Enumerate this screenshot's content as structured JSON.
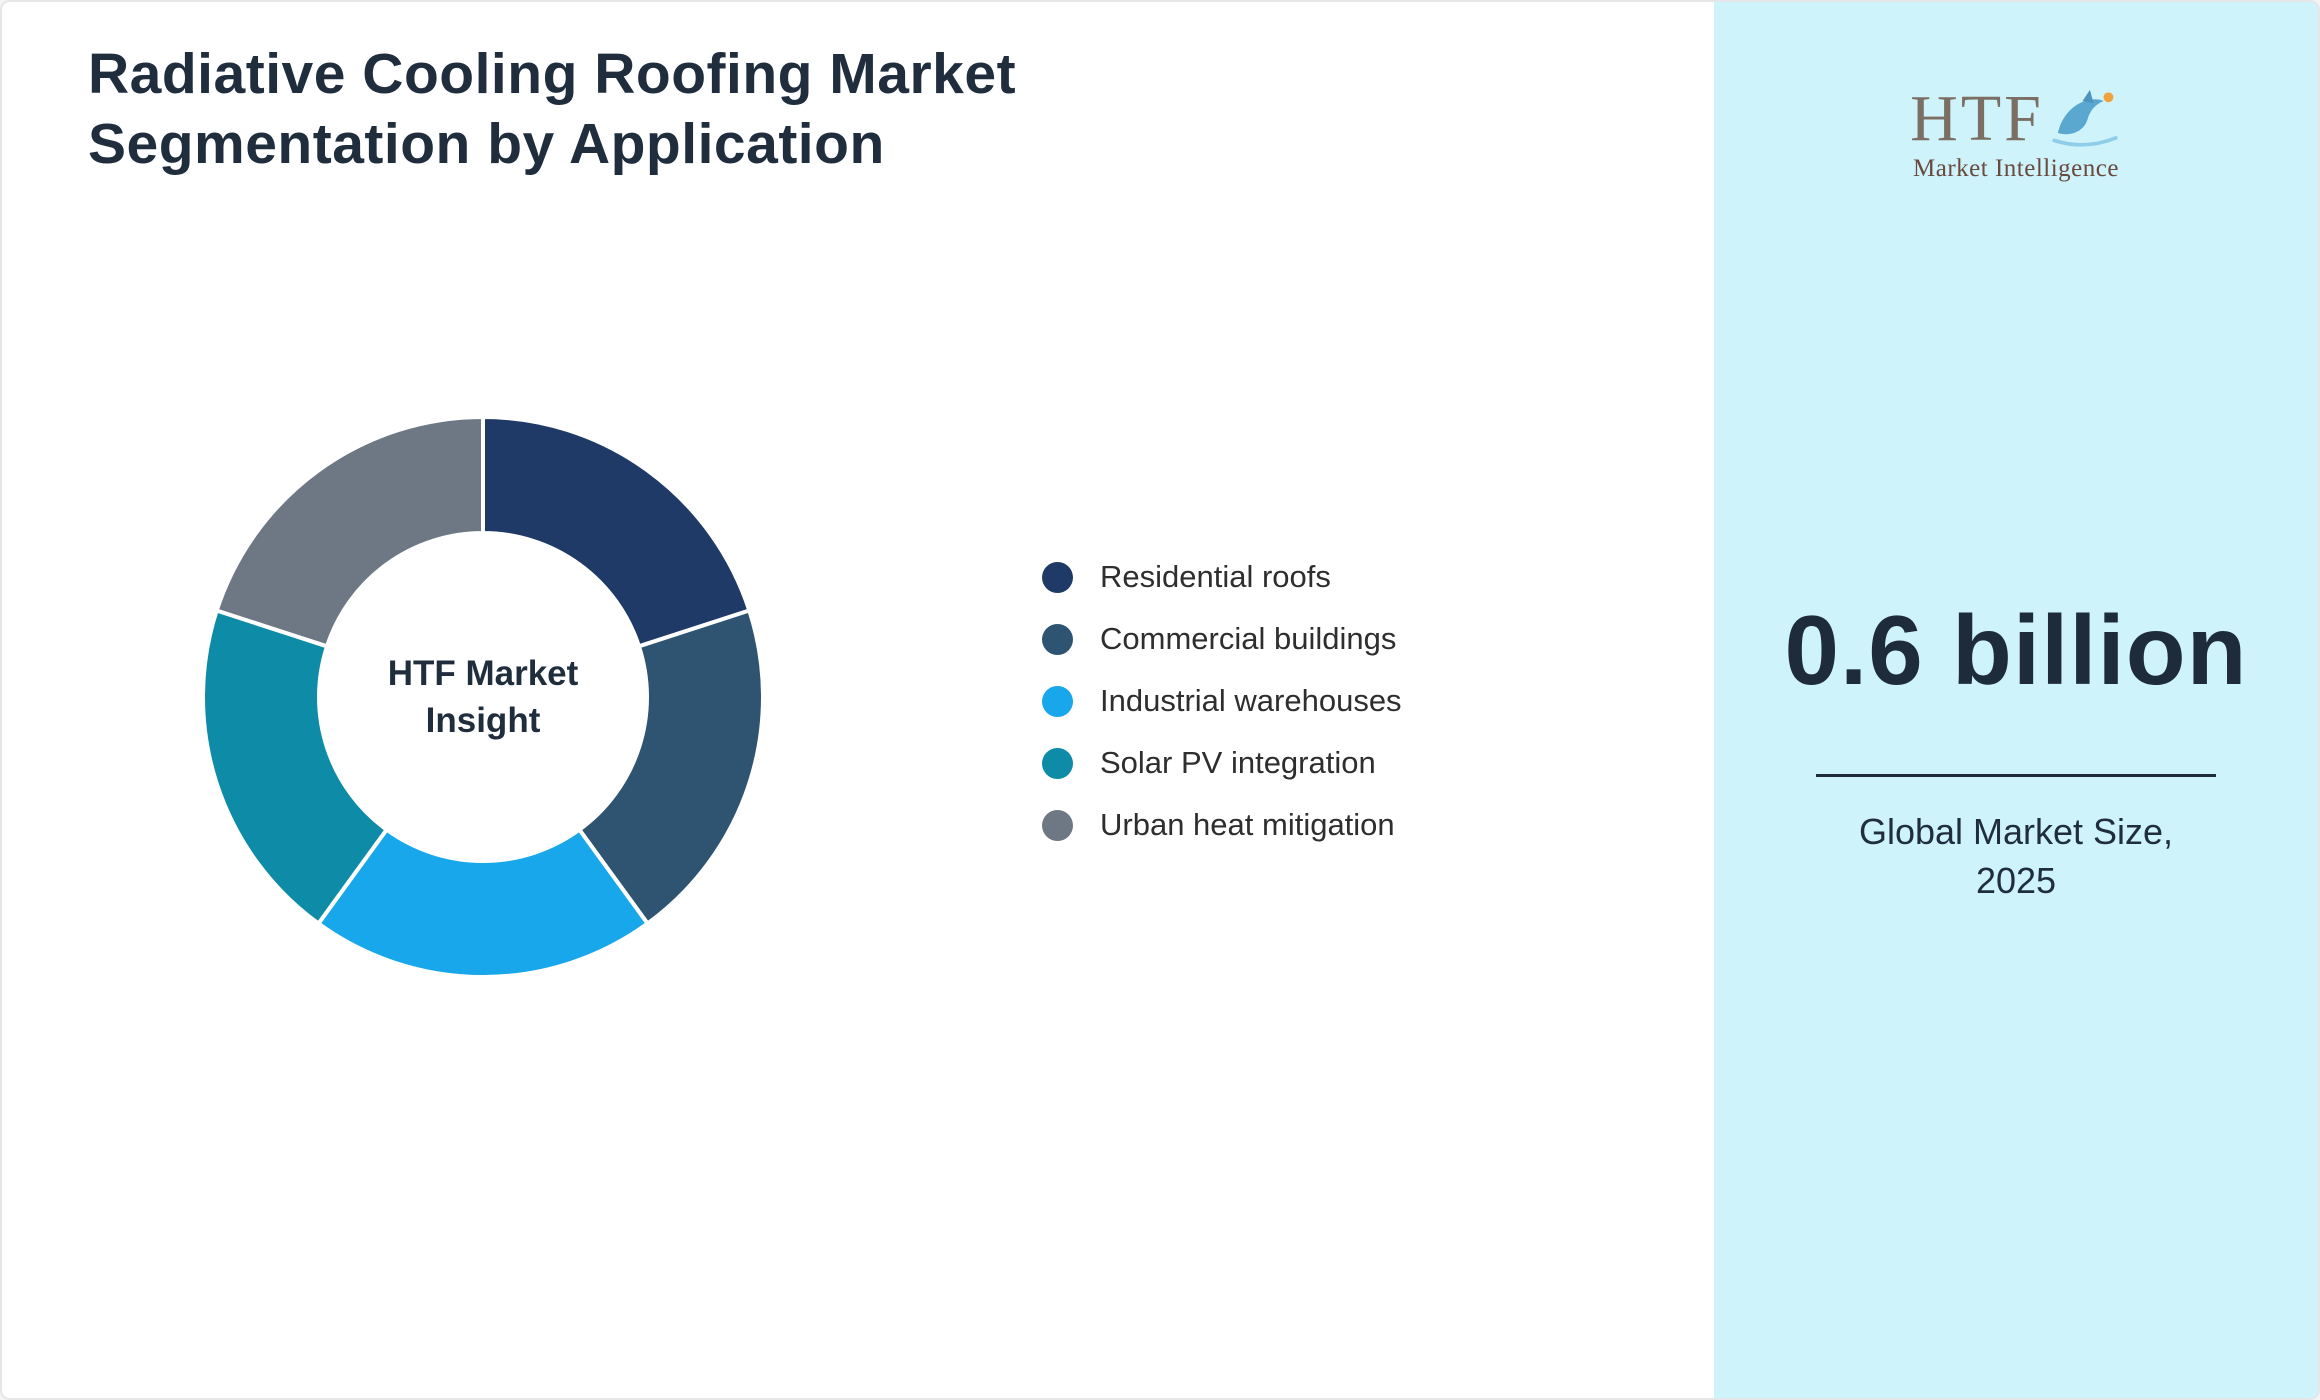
{
  "page": {
    "title_line1": "Radiative Cooling Roofing Market",
    "title_line2": "Segmentation by Application"
  },
  "chart_data": {
    "type": "pie",
    "style": "donut",
    "title": "Radiative Cooling Roofing Market Segmentation by Application",
    "categories": [
      "Residential roofs",
      "Commercial buildings",
      "Industrial warehouses",
      "Solar PV integration",
      "Urban heat mitigation"
    ],
    "values": [
      20,
      20,
      20,
      20,
      20
    ],
    "colors": [
      "#1f3a66",
      "#2e5472",
      "#18a7ea",
      "#0e8ba6",
      "#6e7885"
    ],
    "start_angle_deg": 0,
    "inner_radius_ratio": 0.585,
    "legend_position": "right",
    "center_label_line1": "HTF Market",
    "center_label_line2": "Insight"
  },
  "sidebar": {
    "background": "#cff3fb",
    "logo": {
      "text": "HTF",
      "subtext": "Market Intelligence",
      "dolphin_icon": "dolphin-logo-icon"
    },
    "market_size_value": "0.6 billion",
    "caption_line1": "Global Market Size,",
    "caption_line2": "2025"
  }
}
